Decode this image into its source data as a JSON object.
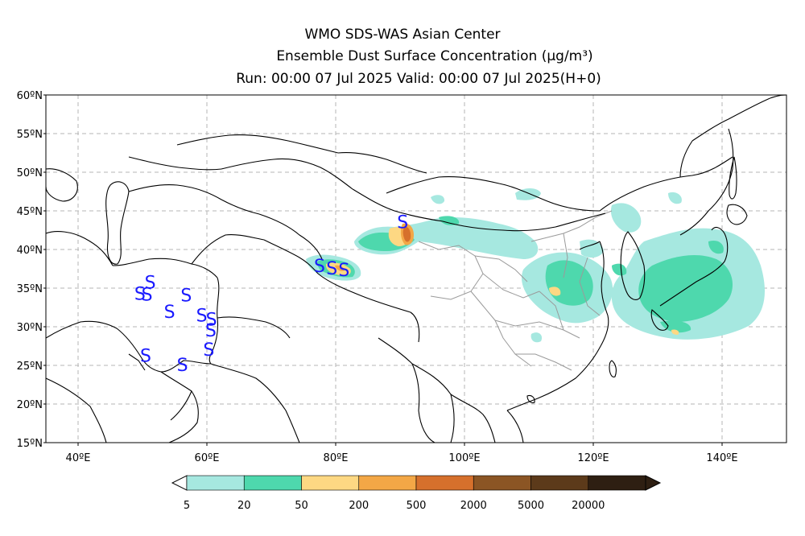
{
  "header": {
    "line1": "WMO SDS-WAS Asian Center",
    "line2": "Ensemble Dust Surface Concentration (μg/m³)",
    "line3": "Run: 00:00 07 Jul 2025    Valid: 00:00 07 Jul 2025(H+0)"
  },
  "map": {
    "lon_range": [
      35,
      150
    ],
    "lat_range": [
      15,
      60
    ],
    "lat_ticks": [
      {
        "value": 60,
        "label": "60ºN"
      },
      {
        "value": 55,
        "label": "55ºN"
      },
      {
        "value": 50,
        "label": "50ºN"
      },
      {
        "value": 45,
        "label": "45ºN"
      },
      {
        "value": 40,
        "label": "40ºN"
      },
      {
        "value": 35,
        "label": "35ºN"
      },
      {
        "value": 30,
        "label": "30ºN"
      },
      {
        "value": 25,
        "label": "25ºN"
      },
      {
        "value": 20,
        "label": "20ºN"
      },
      {
        "value": 15,
        "label": "15ºN"
      }
    ],
    "lon_ticks": [
      {
        "value": 40,
        "label": "40ºE"
      },
      {
        "value": 60,
        "label": "60ºE"
      },
      {
        "value": 80,
        "label": "80ºE"
      },
      {
        "value": 100,
        "label": "100ºE"
      },
      {
        "value": 120,
        "label": "120ºE"
      },
      {
        "value": 140,
        "label": "140ºE"
      }
    ],
    "grid": true,
    "station_symbol": "S",
    "station_color": "#1a1aff",
    "stations": [
      {
        "lon": 49.6,
        "lat": 34.3
      },
      {
        "lon": 50.7,
        "lat": 34.2
      },
      {
        "lon": 51.2,
        "lat": 35.8
      },
      {
        "lon": 54.2,
        "lat": 32.0
      },
      {
        "lon": 56.8,
        "lat": 34.1
      },
      {
        "lon": 59.2,
        "lat": 31.5
      },
      {
        "lon": 60.7,
        "lat": 31.0
      },
      {
        "lon": 60.6,
        "lat": 29.6
      },
      {
        "lon": 60.3,
        "lat": 27.1
      },
      {
        "lon": 50.5,
        "lat": 26.3
      },
      {
        "lon": 56.2,
        "lat": 25.1
      },
      {
        "lon": 77.5,
        "lat": 37.9
      },
      {
        "lon": 79.4,
        "lat": 37.6
      },
      {
        "lon": 81.3,
        "lat": 37.4
      },
      {
        "lon": 90.4,
        "lat": 43.6
      }
    ]
  },
  "legend": {
    "levels": [
      "5",
      "20",
      "50",
      "200",
      "500",
      "2000",
      "5000",
      "20000"
    ],
    "colors": [
      "#a6e8e0",
      "#4ed8ad",
      "#fdd883",
      "#f3a746",
      "#d6702c",
      "#8b5524",
      "#5c3a1a",
      "#2e1f12"
    ]
  }
}
